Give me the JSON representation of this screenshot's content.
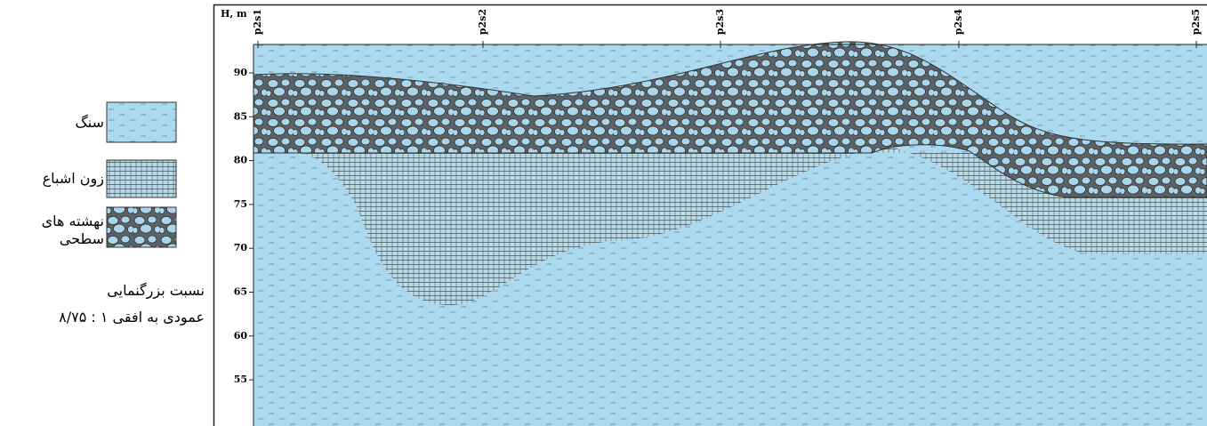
{
  "legend": {
    "items": [
      {
        "label": "سنگ"
      },
      {
        "label": "زون اشباع"
      },
      {
        "lines": [
          "نهشته های",
          "سطحی"
        ]
      }
    ],
    "scale_note": [
      "نسبت بزرگنمایی",
      "عمودی به افقی ۱ : ۸/۷۵"
    ]
  },
  "section": {
    "axis_title": "H, m",
    "y_ticks": [
      90,
      85,
      80,
      75,
      70,
      65,
      60,
      55
    ],
    "stations": [
      "p2s1",
      "p2s2",
      "p2s3",
      "p2s4",
      "p2s5"
    ]
  }
}
